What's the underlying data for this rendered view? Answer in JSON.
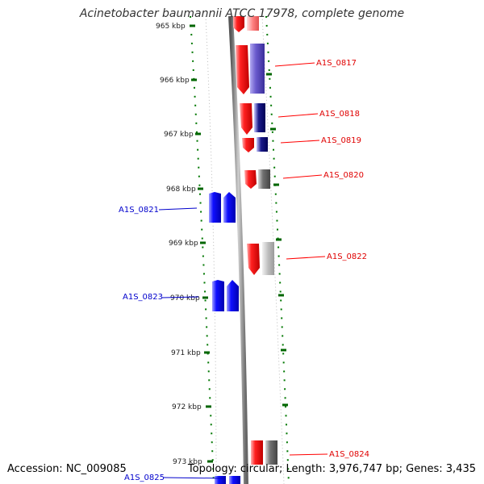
{
  "title": "Acinetobacter baumannii ATCC 17978, complete genome",
  "footer": {
    "accession": "Accession: NC_009085",
    "topology": "Topology: circular; Length: 3,976,747 bp; Genes: 3,435"
  },
  "colors": {
    "forward": "#ff0000",
    "reverse": "#0000ff",
    "ticks": "#007700",
    "backbone": "#888888"
  },
  "kbp_labels": [
    "965 kbp",
    "966 kbp",
    "967 kbp",
    "968 kbp",
    "969 kbp",
    "970 kbp",
    "971 kbp",
    "972 kbp",
    "973 kbp"
  ],
  "genes": [
    {
      "name": "A1S_0817",
      "strand": "forward"
    },
    {
      "name": "A1S_0818",
      "strand": "forward"
    },
    {
      "name": "A1S_0819",
      "strand": "forward"
    },
    {
      "name": "A1S_0820",
      "strand": "forward"
    },
    {
      "name": "A1S_0821",
      "strand": "reverse"
    },
    {
      "name": "A1S_0822",
      "strand": "forward"
    },
    {
      "name": "A1S_0823",
      "strand": "reverse"
    },
    {
      "name": "A1S_0824",
      "strand": "forward"
    },
    {
      "name": "A1S_0825",
      "strand": "reverse"
    }
  ]
}
